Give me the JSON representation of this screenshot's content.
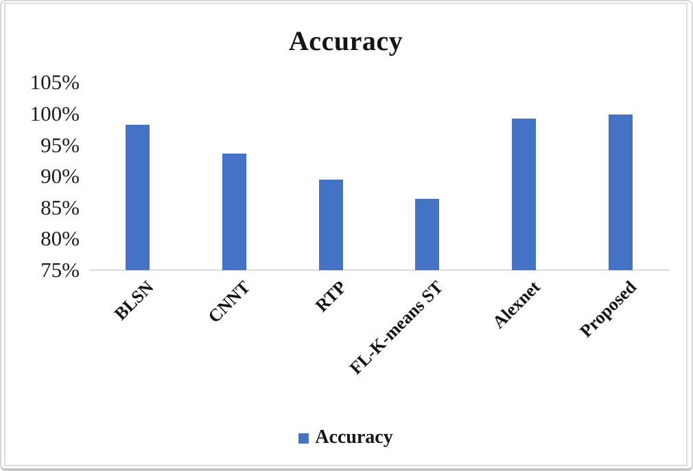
{
  "chart_data": {
    "type": "bar",
    "title": "Accuracy",
    "categories": [
      "BLSN",
      "CNNT",
      "RTP",
      "FL-K-means ST",
      "Alexnet",
      "Proposed"
    ],
    "series": [
      {
        "name": "Accuracy",
        "values": [
          98.3,
          93.6,
          89.5,
          86.4,
          99.2,
          99.9
        ]
      }
    ],
    "unit": "%",
    "ylim": [
      75,
      105
    ],
    "ytick_step": 5,
    "ytick_labels": [
      "105%",
      "100%",
      "95%",
      "90%",
      "85%",
      "80%",
      "75%"
    ],
    "xlabel": "",
    "ylabel": "",
    "grid": false,
    "legend_position": "bottom",
    "x_labels_rotation_deg": -45,
    "bar_color": "#4472C4",
    "axis_line_color": "#d9d9d9",
    "text_color": "#1c1c1c"
  },
  "legend": {
    "items": [
      {
        "label": "Accuracy",
        "color": "#4472C4"
      }
    ]
  }
}
